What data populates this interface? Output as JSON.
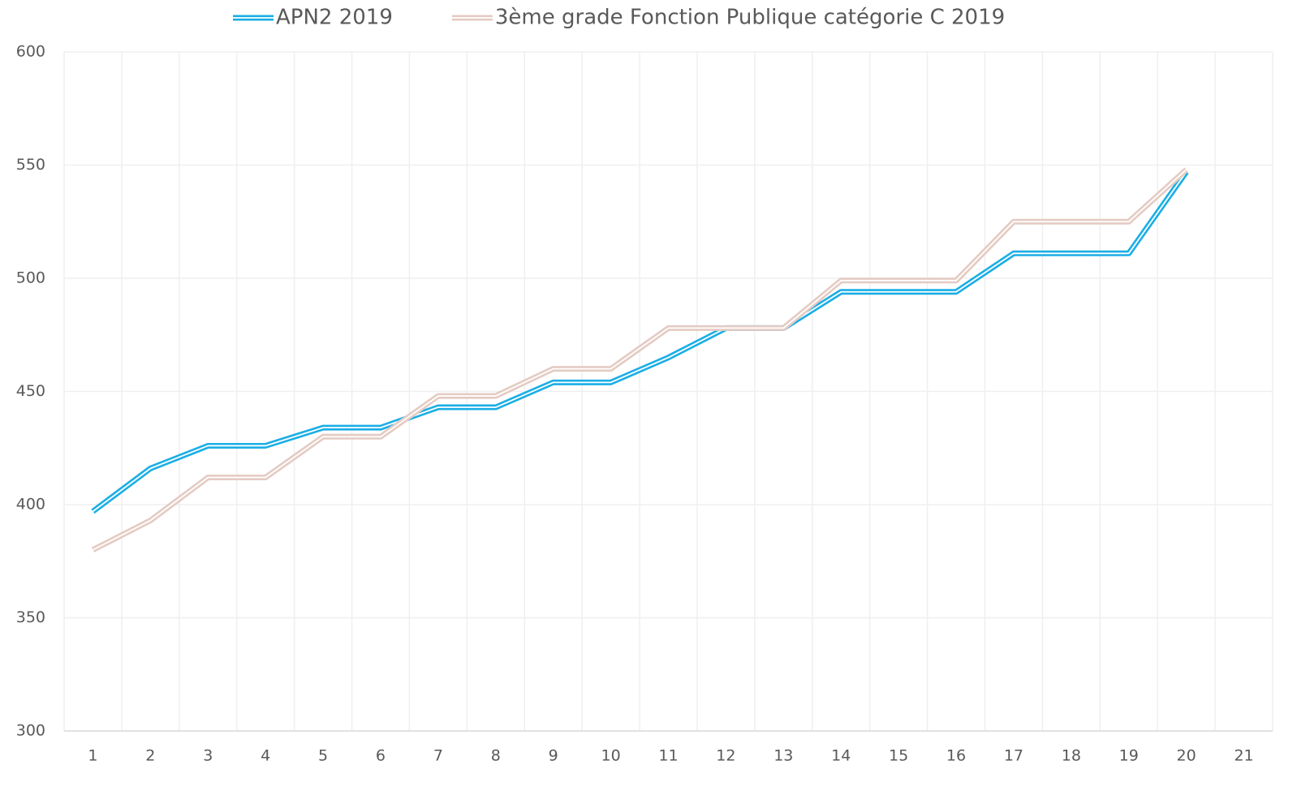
{
  "chart_data": {
    "type": "line",
    "categories": [
      "1",
      "2",
      "3",
      "4",
      "5",
      "6",
      "7",
      "8",
      "9",
      "10",
      "11",
      "12",
      "13",
      "14",
      "15",
      "16",
      "17",
      "18",
      "19",
      "20",
      "21"
    ],
    "series": [
      {
        "name": "APN2 2019",
        "color": "#1aaee5",
        "values": [
          397,
          416,
          426,
          426,
          434,
          434,
          443,
          443,
          454,
          454,
          465,
          478,
          478,
          494,
          494,
          494,
          511,
          511,
          511,
          547,
          null
        ]
      },
      {
        "name": "3ème grade Fonction Publique catégorie C 2019",
        "color": "#e4cbc3",
        "values": [
          380,
          393,
          412,
          412,
          430,
          430,
          448,
          448,
          460,
          460,
          478,
          478,
          478,
          499,
          499,
          499,
          525,
          525,
          525,
          548,
          null
        ]
      }
    ],
    "ylim": [
      300,
      600
    ],
    "yticks": [
      300,
      350,
      400,
      450,
      500,
      550,
      600
    ],
    "grid": true,
    "legend": "top"
  }
}
